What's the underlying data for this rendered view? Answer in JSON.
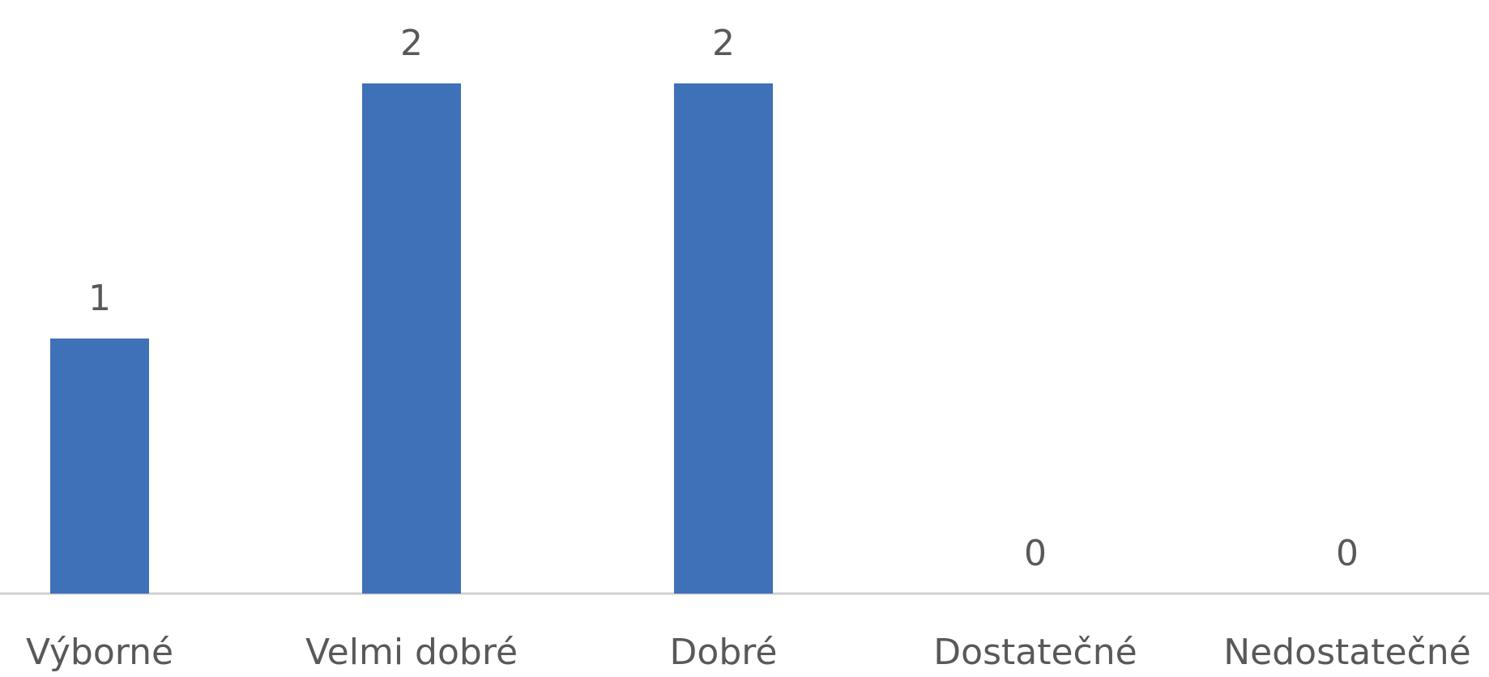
{
  "chart_data": {
    "type": "bar",
    "title": "",
    "xlabel": "",
    "ylabel": "",
    "categories": [
      "Výborné",
      "Velmi dobré",
      "Dobré",
      "Dostatečné",
      "Nedostatečné"
    ],
    "values": [
      1,
      2,
      2,
      0,
      0
    ],
    "data_labels": [
      "1",
      "2",
      "2",
      "0",
      "0"
    ],
    "ylim": [
      0,
      2
    ],
    "grid": false,
    "legend": "none",
    "colors": {
      "bar": "#3f71b8",
      "axis": "#d0d0d0",
      "label_text": "#595959"
    }
  }
}
